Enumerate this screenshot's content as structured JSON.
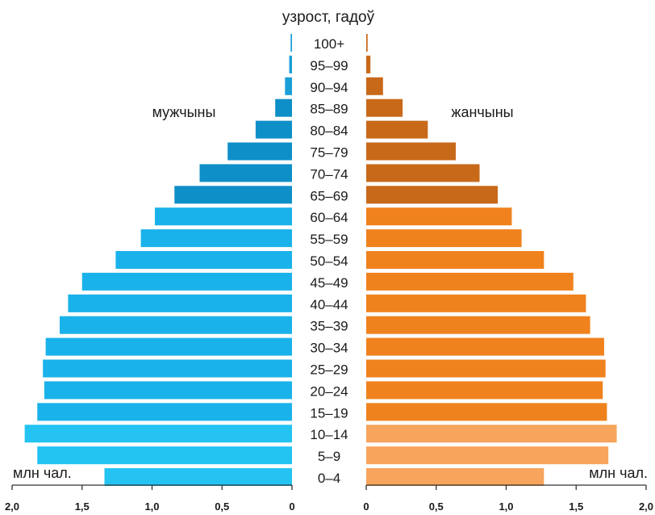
{
  "chart_data": {
    "type": "bar",
    "orientation": "horizontal-population-pyramid",
    "title": "узрост, гадоў",
    "unit_label": "млн чал.",
    "categories": [
      "100+",
      "95–99",
      "90–94",
      "85–89",
      "80–84",
      "75–79",
      "70–74",
      "65–69",
      "60–64",
      "55–59",
      "50–54",
      "45–49",
      "40–44",
      "35–39",
      "30–34",
      "25–29",
      "20–24",
      "15–19",
      "10–14",
      "5–9",
      "0–4"
    ],
    "series": [
      {
        "name": "мужчыны",
        "values": [
          0.01,
          0.02,
          0.05,
          0.12,
          0.26,
          0.46,
          0.66,
          0.84,
          0.98,
          1.08,
          1.26,
          1.5,
          1.6,
          1.66,
          1.76,
          1.78,
          1.77,
          1.82,
          1.91,
          1.82,
          1.34
        ],
        "colors": [
          "#1a9fd6",
          "#1a9fd6",
          "#1a9fd6",
          "#0f8fc8",
          "#0f8fc8",
          "#0f8fc8",
          "#0f8fc8",
          "#0f8fc8",
          "#1ab2ea",
          "#1ab2ea",
          "#1ab2ea",
          "#1ab2ea",
          "#1ab2ea",
          "#1ab2ea",
          "#1ab2ea",
          "#1ab2ea",
          "#1ab2ea",
          "#1ab2ea",
          "#24c3f2",
          "#24c3f2",
          "#24c3f2"
        ]
      },
      {
        "name": "жанчыны",
        "values": [
          0.01,
          0.03,
          0.12,
          0.26,
          0.44,
          0.64,
          0.81,
          0.94,
          1.04,
          1.11,
          1.27,
          1.48,
          1.57,
          1.6,
          1.7,
          1.71,
          1.69,
          1.72,
          1.79,
          1.73,
          1.27
        ],
        "colors": [
          "#c8691a",
          "#c8691a",
          "#c8691a",
          "#c8691a",
          "#c8691a",
          "#c8691a",
          "#c8691a",
          "#c8691a",
          "#f0821e",
          "#f0821e",
          "#f0821e",
          "#f0821e",
          "#f0821e",
          "#f0821e",
          "#f0821e",
          "#f0821e",
          "#f0821e",
          "#f0821e",
          "#f7a45c",
          "#f7a45c",
          "#f7a45c"
        ]
      }
    ],
    "xlim": [
      0,
      2.0
    ],
    "ticks": [
      2.0,
      1.5,
      1.0,
      0.5,
      0
    ],
    "tick_labels": [
      "2,0",
      "1,5",
      "1,0",
      "0,5",
      "0"
    ],
    "grid": false,
    "legend": "series names printed beside the bars"
  }
}
